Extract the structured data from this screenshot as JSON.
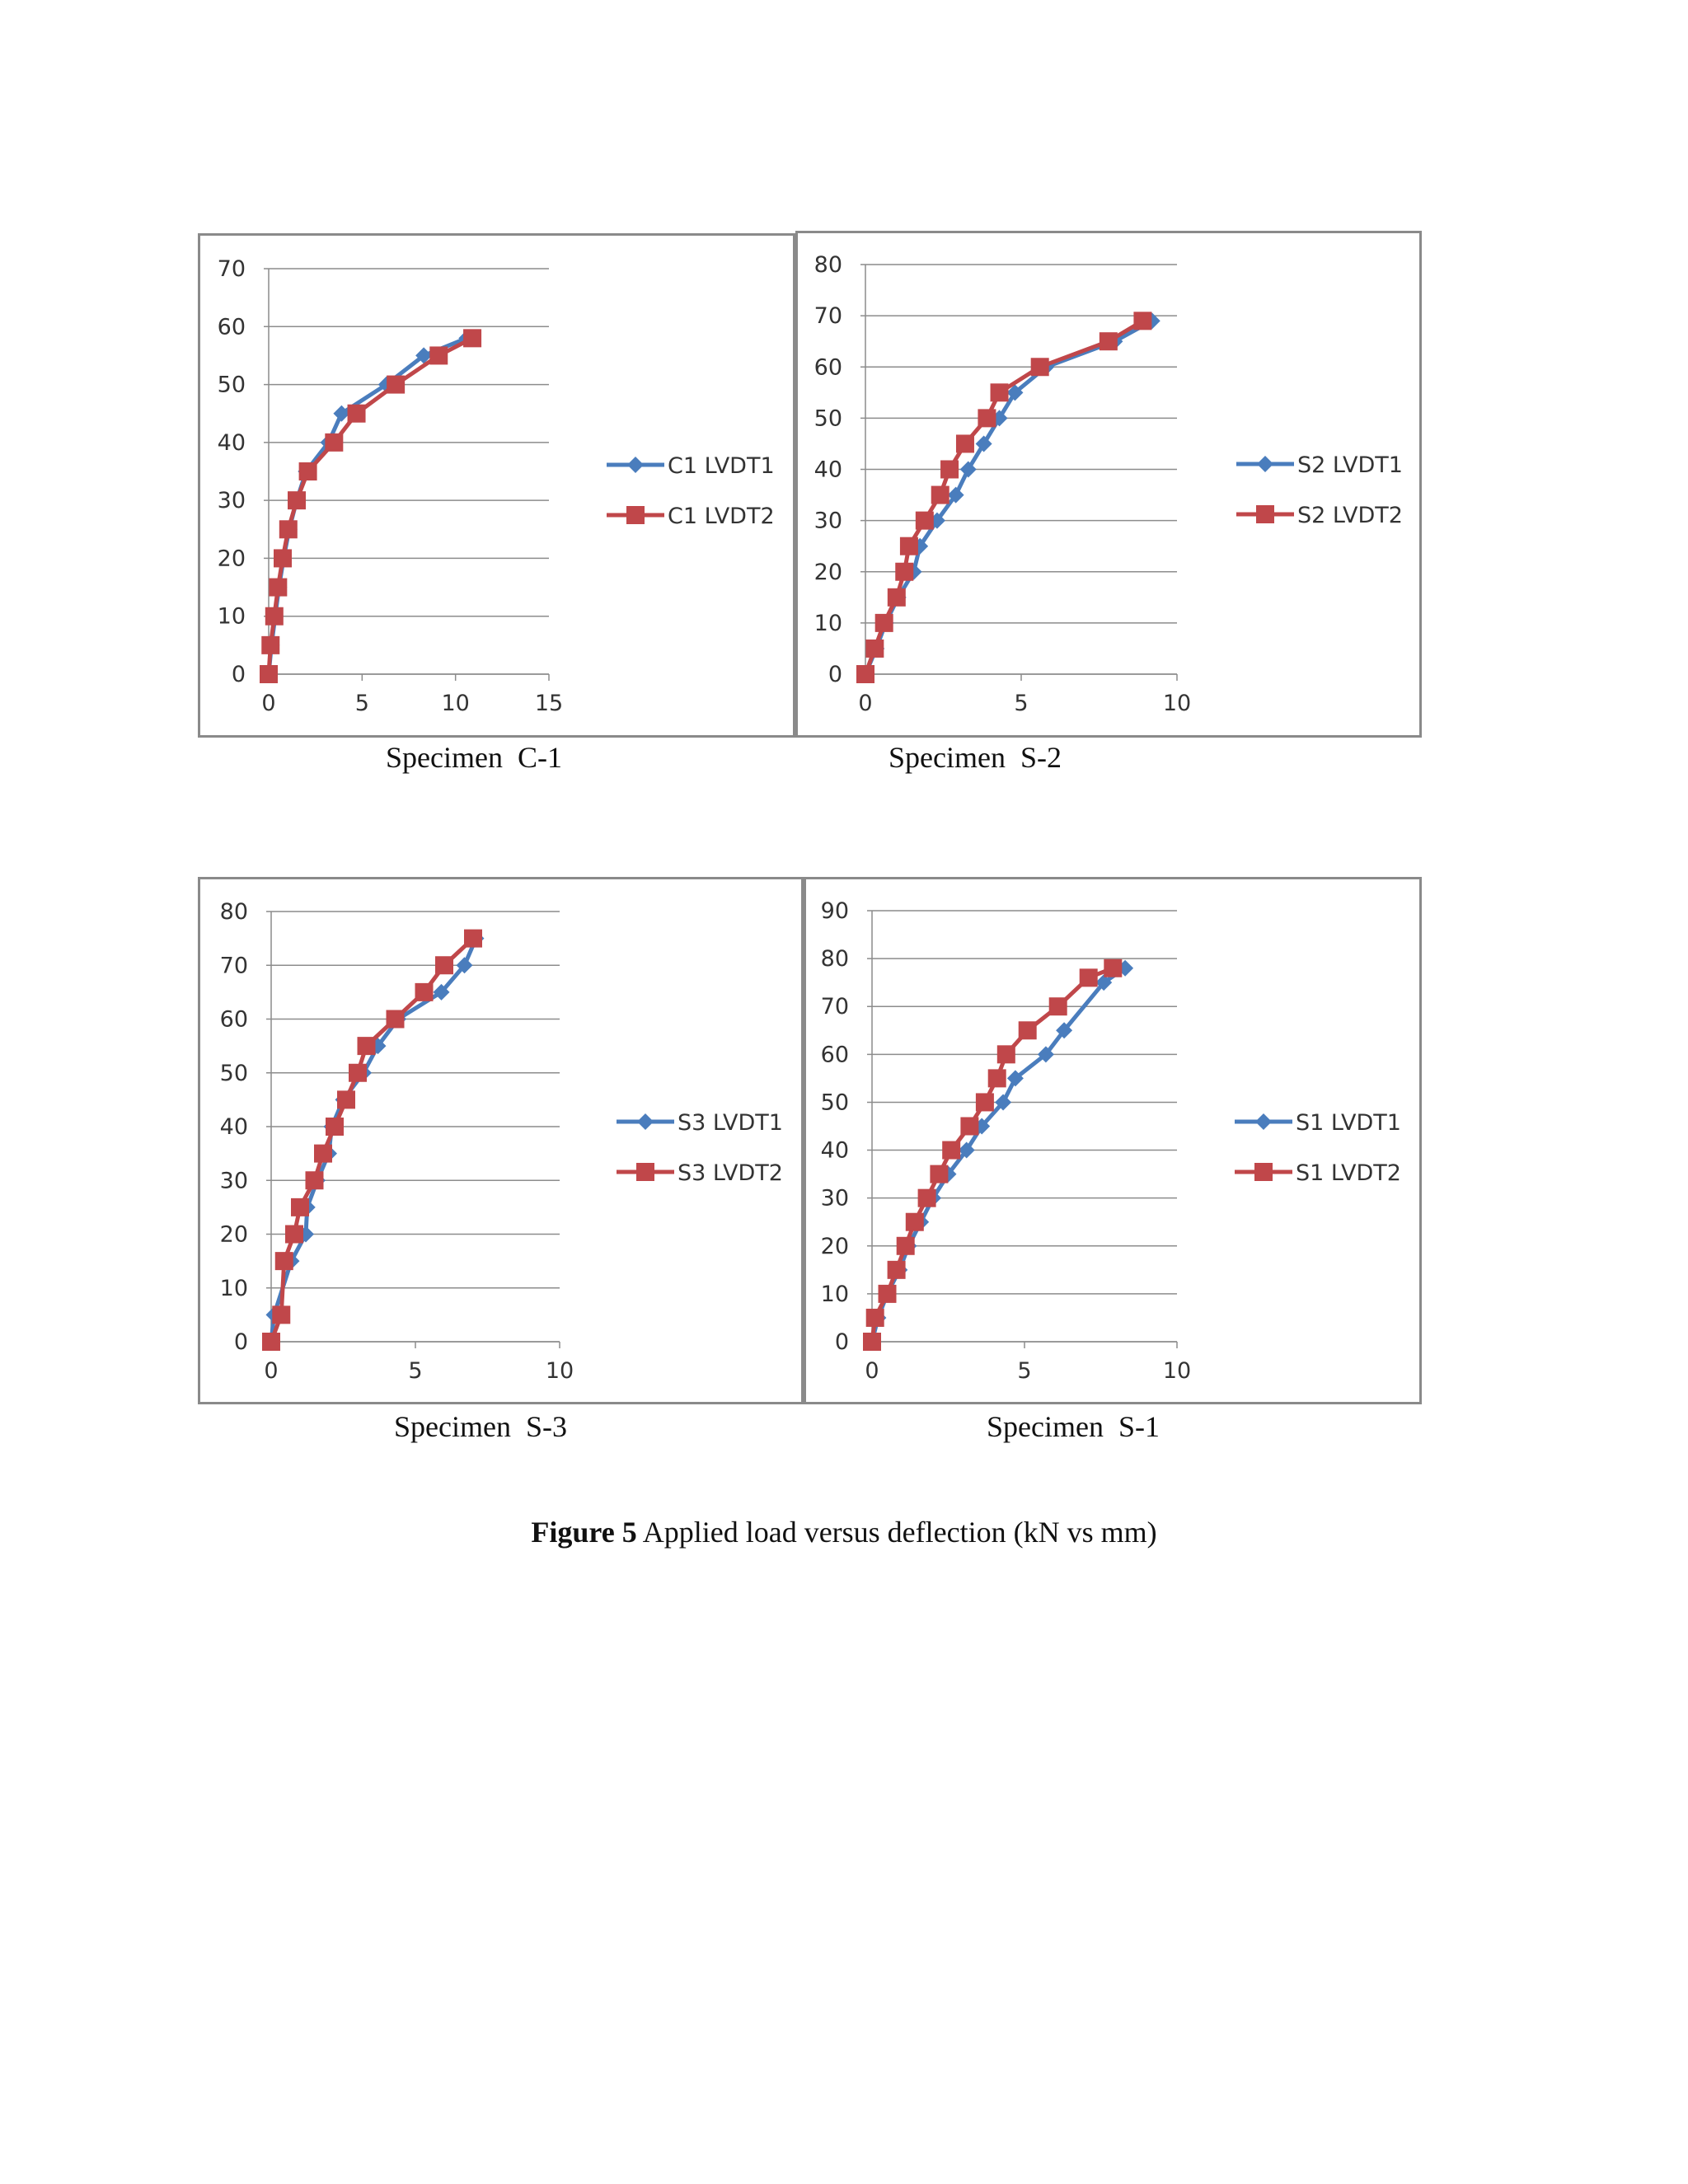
{
  "figure": {
    "label": "Figure 5",
    "caption": " Applied load versus deflection (kN vs mm)"
  },
  "colors": {
    "series1": "#4a7dbd",
    "series2": "#c0474a",
    "grid": "#8c8c8c",
    "border": "#8a8a8a"
  },
  "chart_data": [
    {
      "type": "line",
      "caption": "Specimen  C-1",
      "xlim": [
        0,
        15
      ],
      "xticks": [
        0,
        5,
        10,
        15
      ],
      "ylim": [
        0,
        70
      ],
      "yticks": [
        0,
        10,
        20,
        30,
        40,
        50,
        60,
        70
      ],
      "grid": true,
      "legend": "right",
      "series": [
        {
          "name": "C1 LVDT1",
          "marker": "diamond",
          "x": [
            0,
            0.15,
            0.35,
            0.55,
            0.8,
            1.1,
            1.5,
            2.0,
            3.2,
            3.9,
            6.3,
            8.3,
            10.6
          ],
          "y": [
            0,
            5,
            10,
            15,
            20,
            25,
            30,
            35,
            40,
            45,
            50,
            55,
            58
          ]
        },
        {
          "name": "C1 LVDT2",
          "marker": "square",
          "x": [
            0,
            0.1,
            0.3,
            0.5,
            0.75,
            1.05,
            1.5,
            2.1,
            3.5,
            4.7,
            6.8,
            9.1,
            10.9
          ],
          "y": [
            0,
            5,
            10,
            15,
            20,
            25,
            30,
            35,
            40,
            45,
            50,
            55,
            58
          ]
        }
      ]
    },
    {
      "type": "line",
      "caption": "Specimen  S-2",
      "xlim": [
        0,
        10
      ],
      "xticks": [
        0,
        5,
        10
      ],
      "ylim": [
        0,
        80
      ],
      "yticks": [
        0,
        10,
        20,
        30,
        40,
        50,
        60,
        70,
        80
      ],
      "grid": true,
      "legend": "right",
      "series": [
        {
          "name": "S2 LVDT1",
          "marker": "diamond",
          "x": [
            0,
            0.35,
            0.65,
            1.05,
            1.55,
            1.75,
            2.3,
            2.9,
            3.3,
            3.8,
            4.3,
            4.8,
            5.8,
            8.0,
            9.2
          ],
          "y": [
            0,
            5,
            10,
            15,
            20,
            25,
            30,
            35,
            40,
            45,
            50,
            55,
            60,
            65,
            69
          ]
        },
        {
          "name": "S2 LVDT2",
          "marker": "square",
          "x": [
            0,
            0.3,
            0.6,
            1.0,
            1.25,
            1.4,
            1.9,
            2.4,
            2.7,
            3.2,
            3.9,
            4.3,
            5.6,
            7.8,
            8.9
          ],
          "y": [
            0,
            5,
            10,
            15,
            20,
            25,
            30,
            35,
            40,
            45,
            50,
            55,
            60,
            65,
            69
          ]
        }
      ]
    },
    {
      "type": "line",
      "caption": "Specimen  S-3",
      "xlim": [
        0,
        10
      ],
      "xticks": [
        0,
        5,
        10
      ],
      "ylim": [
        0,
        80
      ],
      "yticks": [
        0,
        10,
        20,
        30,
        40,
        50,
        60,
        70,
        80
      ],
      "grid": true,
      "legend": "right",
      "series": [
        {
          "name": "S3 LVDT1",
          "marker": "diamond",
          "x": [
            0,
            0.1,
            0.7,
            1.2,
            1.25,
            1.6,
            2.0,
            2.1,
            2.5,
            3.2,
            3.7,
            4.4,
            5.9,
            6.7,
            7.1
          ],
          "y": [
            0,
            5,
            15,
            20,
            25,
            30,
            35,
            40,
            45,
            50,
            55,
            60,
            65,
            70,
            75
          ]
        },
        {
          "name": "S3 LVDT2",
          "marker": "square",
          "x": [
            0,
            0.35,
            0.45,
            0.8,
            1.0,
            1.5,
            1.8,
            2.2,
            2.6,
            3.0,
            3.3,
            4.3,
            5.3,
            6.0,
            7.0
          ],
          "y": [
            0,
            5,
            15,
            20,
            25,
            30,
            35,
            40,
            45,
            50,
            55,
            60,
            65,
            70,
            75
          ]
        }
      ]
    },
    {
      "type": "line",
      "caption": "Specimen  S-1",
      "xlim": [
        0,
        10
      ],
      "xticks": [
        0,
        5,
        10
      ],
      "ylim": [
        0,
        90
      ],
      "yticks": [
        0,
        10,
        20,
        30,
        40,
        50,
        60,
        70,
        80,
        90
      ],
      "grid": true,
      "legend": "right",
      "series": [
        {
          "name": "S1 LVDT1",
          "marker": "diamond",
          "x": [
            0,
            0.2,
            0.5,
            0.9,
            1.2,
            1.6,
            2.0,
            2.5,
            3.1,
            3.6,
            4.3,
            4.7,
            5.7,
            6.3,
            7.6,
            8.3
          ],
          "y": [
            0,
            5,
            10,
            15,
            20,
            25,
            30,
            35,
            40,
            45,
            50,
            55,
            60,
            65,
            75,
            78
          ]
        },
        {
          "name": "S1 LVDT2",
          "marker": "square",
          "x": [
            0,
            0.1,
            0.5,
            0.8,
            1.1,
            1.4,
            1.8,
            2.2,
            2.6,
            3.2,
            3.7,
            4.1,
            4.4,
            5.1,
            6.1,
            7.1,
            7.9
          ],
          "y": [
            0,
            5,
            10,
            15,
            20,
            25,
            30,
            35,
            40,
            45,
            50,
            55,
            60,
            65,
            70,
            76,
            78
          ]
        }
      ]
    }
  ]
}
